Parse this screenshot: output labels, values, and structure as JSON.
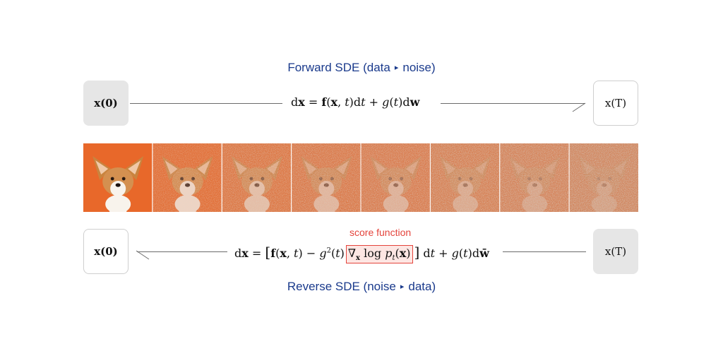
{
  "forward": {
    "title_left": "Forward SDE (data",
    "title_arrow": "▸",
    "title_right": "noise)",
    "start_label": "x(0)",
    "end_label": "x(T)",
    "equation": "dx = f(x, t)dt + g(t)dw"
  },
  "reverse": {
    "title_left": "Reverse SDE (noise",
    "title_arrow": "▸",
    "title_right": "data)",
    "start_label": "x(0)",
    "end_label": "x(T)",
    "equation": "dx = [f(x, t) − g²(t)∇x log pt(x)] dt + g(t)dw̄",
    "score_label": "score function"
  },
  "images": {
    "subject": "corgi puppy on orange background",
    "noise_levels": [
      0.0,
      0.25,
      0.5,
      0.6,
      0.68,
      0.8,
      0.9,
      1.0
    ]
  },
  "colors": {
    "title": "#1a3a8c",
    "score": "#e4443c",
    "score_bg": "#fde6e3",
    "box_fill": "#e6e6e6",
    "image_bg": "#e8682a"
  }
}
